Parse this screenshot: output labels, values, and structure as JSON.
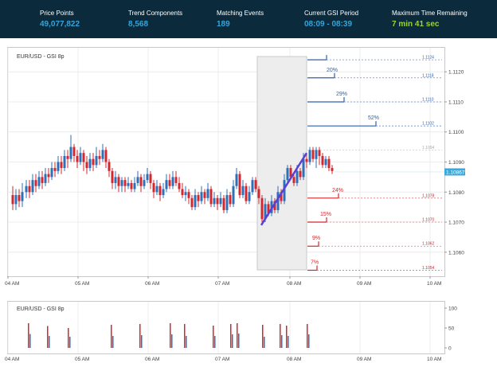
{
  "stats": [
    {
      "label": "Price Points",
      "value": "49,077,822",
      "color": "#34a5dc"
    },
    {
      "label": "Trend Components",
      "value": "8,568",
      "color": "#34a5dc"
    },
    {
      "label": "Matching Events",
      "value": "189",
      "color": "#34a5dc"
    },
    {
      "label": "Current GSI Period",
      "value": "08:09 - 08:39",
      "color": "#34a5dc"
    },
    {
      "label": "Maximum Time Remaining",
      "value": "7 min 41 sec",
      "color": "#9ad33a"
    }
  ],
  "main_chart": {
    "title": "EUR/USD - GSI 8p",
    "current_price": "1.10867",
    "ylim": [
      1.1052,
      1.1128
    ],
    "y_ticks": [
      {
        "value": 1.112,
        "label": "1.1120"
      },
      {
        "value": 1.111,
        "label": "1.1110"
      },
      {
        "value": 1.11,
        "label": "1.1100"
      },
      {
        "value": 1.109,
        "label": "1.1090"
      },
      {
        "value": 1.108,
        "label": "1.1080"
      },
      {
        "value": 1.107,
        "label": "1.1070"
      },
      {
        "value": 1.106,
        "label": "1.1060"
      }
    ],
    "x_ticks": [
      "04 AM",
      "05 AM",
      "06 AM",
      "07 AM",
      "08 AM",
      "09 AM",
      "10 AM"
    ],
    "up_color": "#2e6fb8",
    "down_color": "#d0282e"
  },
  "projections": {
    "up": [
      {
        "percent": "",
        "price": "1.1124"
      },
      {
        "percent": "20%",
        "price": "1.1118"
      },
      {
        "percent": "29%",
        "price": "1.1110"
      },
      {
        "percent": "52%",
        "price": "1.1102"
      }
    ],
    "neutral": {
      "price": "1.1094"
    },
    "down": [
      {
        "percent": "24%",
        "price": "1.1078"
      },
      {
        "percent": "15%",
        "price": "1.1070"
      },
      {
        "percent": "9%",
        "price": "1.1062"
      },
      {
        "percent": "7%",
        "price": "1.1054"
      }
    ]
  },
  "volume_chart": {
    "title": "EUR/USD - GSI 8p",
    "y_ticks": [
      "100",
      "50",
      "0"
    ],
    "ylim": [
      0,
      100
    ]
  }
}
